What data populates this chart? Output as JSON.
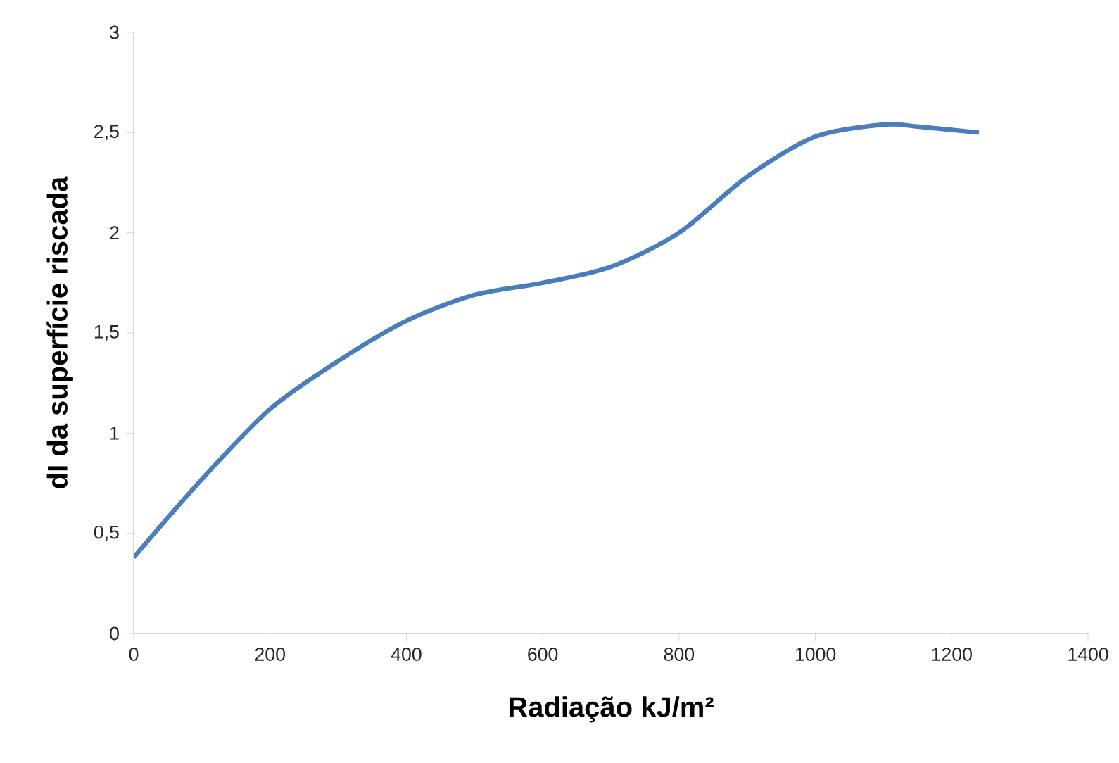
{
  "chart_data": {
    "type": "line",
    "xlabel": "Radiação  kJ/m²",
    "ylabel": "dI da superfície riscada",
    "x": [
      0,
      100,
      200,
      300,
      400,
      500,
      600,
      700,
      800,
      900,
      1000,
      1100,
      1150,
      1240
    ],
    "series": [
      {
        "color": "#4a7ebb",
        "values": [
          0.38,
          0.77,
          1.12,
          1.36,
          1.56,
          1.69,
          1.75,
          1.83,
          2.0,
          2.28,
          2.48,
          2.54,
          2.53,
          2.5
        ]
      }
    ],
    "xlim": [
      0,
      1400
    ],
    "ylim": [
      0,
      3
    ],
    "xticks": [
      0,
      200,
      400,
      600,
      800,
      1000,
      1200,
      1400
    ],
    "yticks": [
      0,
      {
        "value": 0.5,
        "label": "0,5"
      },
      1,
      {
        "value": 1.5,
        "label": "1,5"
      },
      2,
      {
        "value": 2.5,
        "label": "2,5"
      },
      3
    ]
  }
}
